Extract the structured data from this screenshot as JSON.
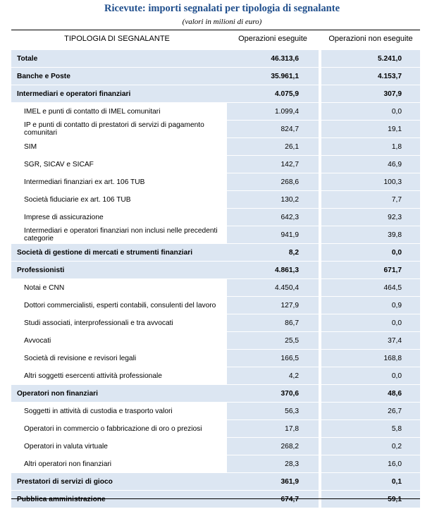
{
  "title": "Ricevute: importi segnalati per tipologia di segnalante",
  "subtitle": "(valori in milioni di euro)",
  "columns": {
    "category": "TIPOLOGIA DI SEGNALANTE",
    "executed": "Operazioni eseguite",
    "not_executed": "Operazioni non eseguite"
  },
  "rows": [
    {
      "label": "Totale",
      "executed": "46.313,6",
      "not_executed": "5.241,0",
      "level": "top"
    },
    {
      "label": "Banche e Poste",
      "executed": "35.961,1",
      "not_executed": "4.153,7",
      "level": "group"
    },
    {
      "label": "Intermediari e operatori finanziari",
      "executed": "4.075,9",
      "not_executed": "307,9",
      "level": "group"
    },
    {
      "label": "IMEL e punti di contatto di IMEL comunitari",
      "executed": "1.099,4",
      "not_executed": "0,0",
      "level": "sub"
    },
    {
      "label": "IP e punti di contatto di prestatori di servizi di pagamento comunitari",
      "executed": "824,7",
      "not_executed": "19,1",
      "level": "sub"
    },
    {
      "label": "SIM",
      "executed": "26,1",
      "not_executed": "1,8",
      "level": "sub"
    },
    {
      "label": "SGR, SICAV e SICAF",
      "executed": "142,7",
      "not_executed": "46,9",
      "level": "sub"
    },
    {
      "label": "Intermediari finanziari ex art. 106 TUB",
      "executed": "268,6",
      "not_executed": "100,3",
      "level": "sub"
    },
    {
      "label": "Società fiduciarie ex art. 106 TUB",
      "executed": "130,2",
      "not_executed": "7,7",
      "level": "sub"
    },
    {
      "label": "Imprese di assicurazione",
      "executed": "642,3",
      "not_executed": "92,3",
      "level": "sub"
    },
    {
      "label": "Intermediari e operatori finanziari non inclusi nelle precedenti categorie",
      "executed": "941,9",
      "not_executed": "39,8",
      "level": "sub"
    },
    {
      "label": "Società di gestione di mercati e strumenti finanziari",
      "executed": "8,2",
      "not_executed": "0,0",
      "level": "group"
    },
    {
      "label": "Professionisti",
      "executed": "4.861,3",
      "not_executed": "671,7",
      "level": "group"
    },
    {
      "label": "Notai e CNN",
      "executed": "4.450,4",
      "not_executed": "464,5",
      "level": "sub"
    },
    {
      "label": "Dottori commercialisti, esperti contabili, consulenti del lavoro",
      "executed": "127,9",
      "not_executed": "0,9",
      "level": "sub"
    },
    {
      "label": "Studi associati, interprofessionali e tra avvocati",
      "executed": "86,7",
      "not_executed": "0,0",
      "level": "sub"
    },
    {
      "label": "Avvocati",
      "executed": "25,5",
      "not_executed": "37,4",
      "level": "sub"
    },
    {
      "label": "Società di revisione e revisori legali",
      "executed": "166,5",
      "not_executed": "168,8",
      "level": "sub"
    },
    {
      "label": "Altri soggetti esercenti attività professionale",
      "executed": "4,2",
      "not_executed": "0,0",
      "level": "sub"
    },
    {
      "label": "Operatori non finanziari",
      "executed": "370,6",
      "not_executed": "48,6",
      "level": "group"
    },
    {
      "label": "Soggetti in attività di custodia e trasporto valori",
      "executed": "56,3",
      "not_executed": "26,7",
      "level": "sub"
    },
    {
      "label": "Operatori in commercio o fabbricazione di oro o preziosi",
      "executed": "17,8",
      "not_executed": "5,8",
      "level": "sub"
    },
    {
      "label": "Operatori in valuta virtuale",
      "executed": "268,2",
      "not_executed": "0,2",
      "level": "sub"
    },
    {
      "label": "Altri operatori non finanziari",
      "executed": "28,3",
      "not_executed": "16,0",
      "level": "sub"
    },
    {
      "label": "Prestatori di servizi di gioco",
      "executed": "361,9",
      "not_executed": "0,1",
      "level": "group"
    },
    {
      "label": "Pubblica amministrazione",
      "executed": "674,7",
      "not_executed": "59,1",
      "level": "group"
    }
  ]
}
